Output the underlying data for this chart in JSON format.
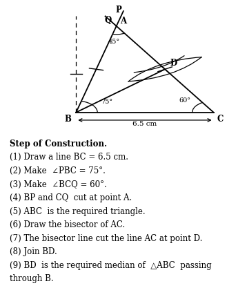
{
  "bg_color": "#ffffff",
  "text_lines": [
    {
      "text": "Step of Construction.",
      "bold": true
    },
    {
      "text": "(1) Draw a line BC = 6.5 cm.",
      "bold": false
    },
    {
      "text": "(2) Make  ∠PBC = 75°.",
      "bold": false
    },
    {
      "text": "(3) Make  ∠BCQ = 60°.",
      "bold": false
    },
    {
      "text": "(4) BP and CQ  cut at point A.",
      "bold": false
    },
    {
      "text": "(5) ABC  is the required triangle.",
      "bold": false
    },
    {
      "text": "(6) Draw the bisector of AC.",
      "bold": false
    },
    {
      "text": "(7) The bisector line cut the line AC at point D.",
      "bold": false
    },
    {
      "text": "(8) Join BD.",
      "bold": false
    },
    {
      "text": "(9) BD  is the required median of  △ABC  passing",
      "bold": false
    },
    {
      "text": "through B.",
      "bold": false
    }
  ],
  "B": [
    0.3,
    0.15
  ],
  "C": [
    0.88,
    0.15
  ],
  "A": [
    0.47,
    0.82
  ],
  "D": [
    0.675,
    0.485
  ],
  "angle_B_label": "75°",
  "angle_C_label": "60°",
  "angle_A_label": "45°"
}
